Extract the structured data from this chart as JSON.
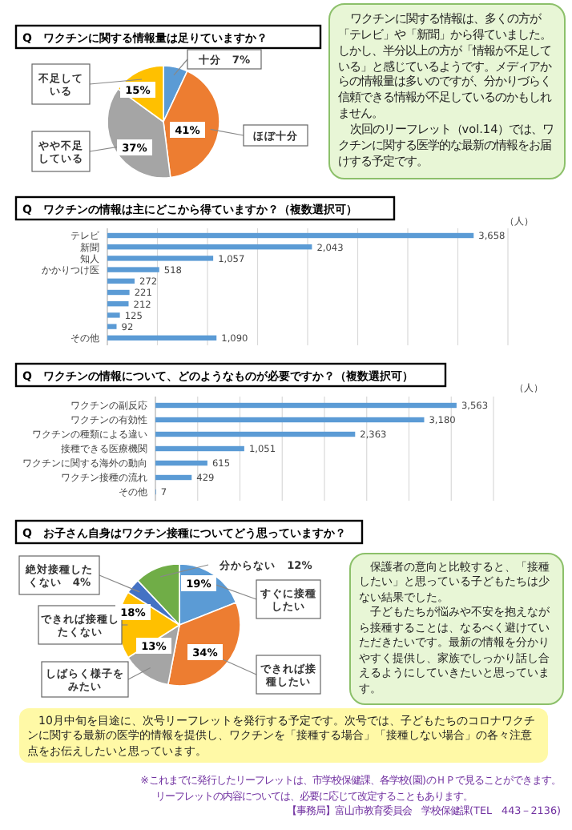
{
  "chart_data": [
    {
      "type": "pie",
      "title": "Q　ワクチンに関する情報量は足りていますか？",
      "categories": [
        "十分",
        "ほぼ十分",
        "やや不足している",
        "不足している"
      ],
      "values": [
        7,
        41,
        37,
        15
      ],
      "colors": [
        "#5b9bd5",
        "#ed7d31",
        "#a5a5a5",
        "#ffc000"
      ],
      "value_labels": [
        "7%",
        "41%",
        "37%",
        "15%"
      ],
      "annotations": [
        "ワクチンに関する情報は、多くの方が「テレビ」や「新聞」から得ていました。しかし、半分以上の方が「情報が不足している」と感じているようです。メディアからの情報量は多いのですが、分かりづらく信頼できる情報が不足しているのかもしれません。",
        "次回のリーフレット（vol.14）では、ワクチンに関する医学的な最新の情報をお届けする予定です。"
      ]
    },
    {
      "type": "bar",
      "orientation": "horizontal",
      "title": "Q　ワクチンの情報は主にどこから得ていますか？（複数選択可）",
      "categories": [
        "テレビ",
        "新聞",
        "知人",
        "かかりつけ医",
        null,
        null,
        null,
        null,
        null,
        "その他"
      ],
      "values": [
        3658,
        2043,
        1057,
        518,
        272,
        221,
        212,
        125,
        92,
        1090
      ],
      "color": "#5b9bd5",
      "value_labels": [
        "3,658",
        "2,043",
        "1,057",
        "518",
        "272",
        "221",
        "212",
        "125",
        "92",
        "1,090"
      ],
      "xlim": [
        0,
        4000
      ],
      "xticks": [
        {
          "value": 0,
          "label": null
        },
        {
          "value": 500,
          "label": null
        },
        {
          "value": 1000,
          "label": null
        },
        {
          "value": 1500,
          "label": null
        },
        {
          "value": 2000,
          "label": null
        },
        {
          "value": 2500,
          "label": null
        },
        {
          "value": 3000,
          "label": null
        },
        {
          "value": 3500,
          "label": null
        },
        {
          "value": 4000,
          "label": null
        }
      ],
      "grid": "x",
      "tick_labels": "y",
      "annotations": [
        "（人）"
      ]
    },
    {
      "type": "bar",
      "orientation": "horizontal",
      "title": "Q　ワクチンの情報について、どのようなものが必要ですか？（複数選択可）",
      "categories": [
        "ワクチンの副反応",
        "ワクチンの有効性",
        "ワクチンの種類による違い",
        "接種できる医療機関",
        "ワクチンに関する海外の動向",
        "ワクチン接種の流れ",
        "その他"
      ],
      "values": [
        3563,
        3180,
        2363,
        1051,
        615,
        429,
        7
      ],
      "color": "#5b9bd5",
      "value_labels": [
        "3,563",
        "3,180",
        "2,363",
        "1,051",
        "615",
        "429",
        "7"
      ],
      "xlim": [
        0,
        4000
      ],
      "xticks": [
        {
          "value": 0,
          "label": null
        },
        {
          "value": 500,
          "label": null
        },
        {
          "value": 1000,
          "label": null
        },
        {
          "value": 1500,
          "label": null
        },
        {
          "value": 2000,
          "label": null
        },
        {
          "value": 2500,
          "label": null
        },
        {
          "value": 3000,
          "label": null
        },
        {
          "value": 3500,
          "label": null
        },
        {
          "value": 4000,
          "label": null
        }
      ],
      "grid": "x",
      "tick_labels": "y",
      "annotations": [
        "（人）"
      ]
    },
    {
      "type": "pie",
      "title": "Q　お子さん自身はワクチン接種についてどう思っていますか？",
      "categories": [
        "すぐに接種したい",
        "できれば接種したい",
        "しばらく様子をみたい",
        "できれば接種したくない",
        "絶対接種したくない",
        "分からない"
      ],
      "values": [
        19,
        34,
        13,
        18,
        4,
        12
      ],
      "colors": [
        "#5b9bd5",
        "#ed7d31",
        "#a5a5a5",
        "#ffc000",
        "#4472c4",
        "#70ad47"
      ],
      "value_labels": [
        "19%",
        "34%",
        "13%",
        "18%",
        "4%",
        "12%"
      ],
      "annotations": [
        "保護者の意向と比較すると、「接種したい」と思っている子どもたちは少ない結果でした。",
        "子どもたちが悩みや不安を抱えながら接種することは、なるべく避けていただきたいです。最新の情報を分かりやすく提供し、家族でしっかり話し合えるようにしていきたいと思っています。",
        "10月中旬を目途に、次号リーフレットを発行する予定です。次号では、子どもたちのコロナワクチンに関する最新の医学的情報を提供し、ワクチンを「接種する場合」「接種しない場合」の各々注意点をお伝えしたいと思っています。",
        "※これまでに発行したリーフレットは、市学校保健課、各学校(園)のＨＰで見ることができます。",
        "リーフレットの内容については、必要に応じて改定することもあります。",
        "【事務局】富山市教育委員会　学校保健課(TEL　443－2136)"
      ]
    }
  ]
}
